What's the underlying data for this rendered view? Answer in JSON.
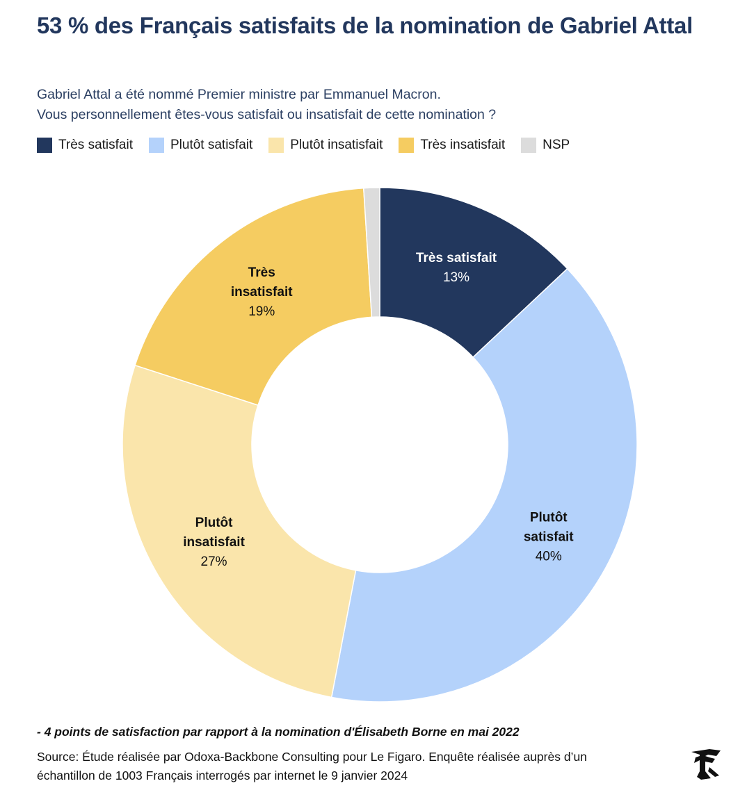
{
  "header": {
    "title": "53 % des Français satisfaits de la nomination de Gabriel Attal",
    "subtitle_line1": "Gabriel Attal a été nommé Premier ministre par Emmanuel Macron.",
    "subtitle_line2": "Vous personnellement êtes-vous satisfait ou insatisfait de cette nomination ?"
  },
  "legend": [
    {
      "label": "Très satisfait",
      "color": "#22375d"
    },
    {
      "label": "Plutôt satisfait",
      "color": "#b4d2fb"
    },
    {
      "label": "Plutôt insatisfait",
      "color": "#fae5ab"
    },
    {
      "label": "Très insatisfait",
      "color": "#f5cc61"
    },
    {
      "label": "NSP",
      "color": "#dcdcdc"
    }
  ],
  "chart_data": {
    "type": "pie",
    "variant": "donut",
    "title": "53 % des Français satisfaits de la nomination de Gabriel Attal",
    "categories": [
      "Très satisfait",
      "Plutôt satisfait",
      "Plutôt insatisfait",
      "Très insatisfait",
      "NSP"
    ],
    "values": [
      13,
      40,
      27,
      19,
      1
    ],
    "colors": [
      "#22375d",
      "#b4d2fb",
      "#fae5ab",
      "#f5cc61",
      "#dcdcdc"
    ],
    "slice_labels": [
      {
        "lines": [
          "Très satisfait"
        ],
        "value": "13%",
        "text_color": "#ffffff"
      },
      {
        "lines": [
          "Plutôt",
          "satisfait"
        ],
        "value": "40%",
        "text_color": "#111111"
      },
      {
        "lines": [
          "Plutôt",
          "insatisfait"
        ],
        "value": "27%",
        "text_color": "#111111"
      },
      {
        "lines": [
          "Très",
          "insatisfait"
        ],
        "value": "19%",
        "text_color": "#111111"
      },
      {
        "lines": [],
        "value": "",
        "text_color": "#111111"
      }
    ],
    "legend_position": "top-left"
  },
  "footer": {
    "note": "- 4 points de satisfaction par rapport à la nomination d'Élisabeth Borne en mai 2022",
    "source_line1": "Source: Étude réalisée par Odoxa-Backbone Consulting pour Le Figaro. Enquête réalisée auprès d’un",
    "source_line2": "échantillon de 1003 Français interrogés par internet le 9 janvier 2024",
    "logo_icon": "le-figaro-logo-icon"
  }
}
